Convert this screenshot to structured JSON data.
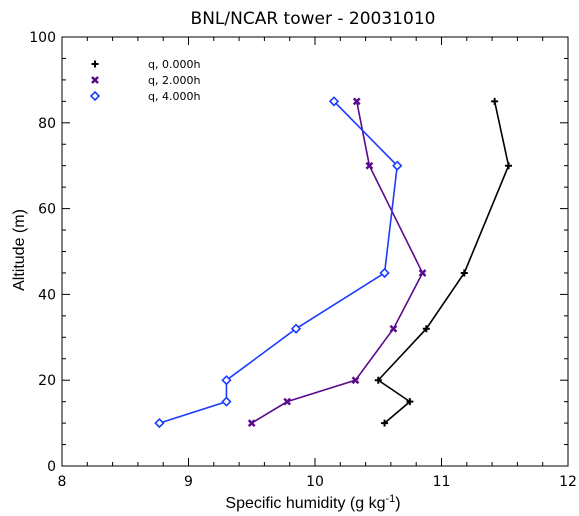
{
  "chart_data": {
    "type": "line",
    "title": "BNL/NCAR tower - 20031010",
    "xlabel_main": "Specific humidity (g kg",
    "xlabel_sup": "-1",
    "xlabel_tail": ")",
    "ylabel": "Altitude (m)",
    "xlim": [
      8,
      12
    ],
    "ylim": [
      0,
      100
    ],
    "xticks": [
      8,
      9,
      10,
      11,
      12
    ],
    "yticks": [
      0,
      20,
      40,
      60,
      80,
      100
    ],
    "grid": false,
    "legend_position": "top-left",
    "series": [
      {
        "name": "q, 0.000h",
        "color": "#000000",
        "marker": "plus",
        "points": [
          {
            "x": 10.55,
            "y": 10
          },
          {
            "x": 10.75,
            "y": 15
          },
          {
            "x": 10.5,
            "y": 20
          },
          {
            "x": 10.88,
            "y": 32
          },
          {
            "x": 11.18,
            "y": 45
          },
          {
            "x": 11.53,
            "y": 70
          },
          {
            "x": 11.42,
            "y": 85
          }
        ]
      },
      {
        "name": "q, 2.000h",
        "color": "#5a0a8c",
        "marker": "x",
        "points": [
          {
            "x": 9.5,
            "y": 10
          },
          {
            "x": 9.78,
            "y": 15
          },
          {
            "x": 10.32,
            "y": 20
          },
          {
            "x": 10.62,
            "y": 32
          },
          {
            "x": 10.85,
            "y": 45
          },
          {
            "x": 10.43,
            "y": 70
          },
          {
            "x": 10.33,
            "y": 85
          }
        ]
      },
      {
        "name": "q, 4.000h",
        "color": "#1a3cff",
        "marker": "diamond",
        "points": [
          {
            "x": 8.77,
            "y": 10
          },
          {
            "x": 9.3,
            "y": 15
          },
          {
            "x": 9.3,
            "y": 20
          },
          {
            "x": 9.85,
            "y": 32
          },
          {
            "x": 10.55,
            "y": 45
          },
          {
            "x": 10.65,
            "y": 70
          },
          {
            "x": 10.15,
            "y": 85
          }
        ]
      }
    ]
  }
}
